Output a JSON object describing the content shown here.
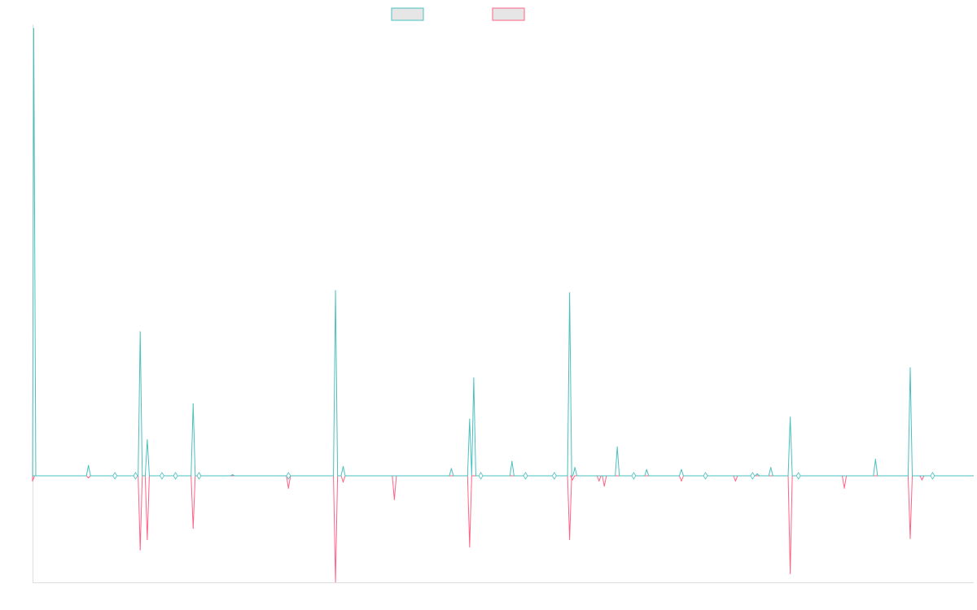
{
  "colors": {
    "series_a": "#4bc0c0",
    "series_b": "#ff6384",
    "legend_fill": "#e6e6e6",
    "axis": "#dddddd"
  },
  "chart_data": {
    "type": "line",
    "title": "",
    "xlabel": "",
    "ylabel": "",
    "grid": false,
    "legend_position": "top-center",
    "x_count": 161,
    "xlim": [
      0,
      160
    ],
    "ylim": [
      -100,
      420
    ],
    "series": [
      {
        "color": "#4bc0c0",
        "points": [
          [
            0,
            0
          ],
          [
            0.2,
            435
          ],
          [
            0.4,
            0
          ],
          [
            9.5,
            10
          ],
          [
            14,
            0
          ],
          [
            17.5,
            1
          ],
          [
            18.3,
            140
          ],
          [
            19.5,
            35
          ],
          [
            27.3,
            70
          ],
          [
            34,
            1
          ],
          [
            51.5,
            180
          ],
          [
            52.8,
            9
          ],
          [
            71.2,
            7
          ],
          [
            74.3,
            55
          ],
          [
            75,
            95
          ],
          [
            81.5,
            14
          ],
          [
            91.3,
            178
          ],
          [
            92.2,
            8
          ],
          [
            99.4,
            28
          ],
          [
            104.4,
            6
          ],
          [
            110.3,
            6
          ],
          [
            123.2,
            2
          ],
          [
            125.5,
            8
          ],
          [
            128.8,
            57
          ],
          [
            143.3,
            16
          ],
          [
            149.2,
            105
          ]
        ]
      },
      {
        "color": "#ff6384",
        "points": [
          [
            0,
            -5
          ],
          [
            0.4,
            0
          ],
          [
            9.5,
            -2
          ],
          [
            18.3,
            -72
          ],
          [
            19.5,
            -62
          ],
          [
            27.3,
            -51
          ],
          [
            43.5,
            -12
          ],
          [
            51.5,
            -103
          ],
          [
            52.8,
            -6
          ],
          [
            61.5,
            -23
          ],
          [
            74.3,
            -69
          ],
          [
            91.3,
            -62
          ],
          [
            91.8,
            -4
          ],
          [
            96.3,
            -5
          ],
          [
            97.2,
            -10
          ],
          [
            110.3,
            -5
          ],
          [
            119.5,
            -5
          ],
          [
            128.8,
            -95
          ],
          [
            138,
            -12
          ],
          [
            149.2,
            -61
          ],
          [
            151.2,
            -4
          ],
          [
            160,
            0
          ]
        ]
      }
    ],
    "markers": [
      14,
      17.5,
      22,
      24.3,
      28.3,
      43.5,
      76.2,
      83.8,
      88.7,
      102.2,
      114.4,
      122.4,
      130.2,
      153
    ]
  }
}
